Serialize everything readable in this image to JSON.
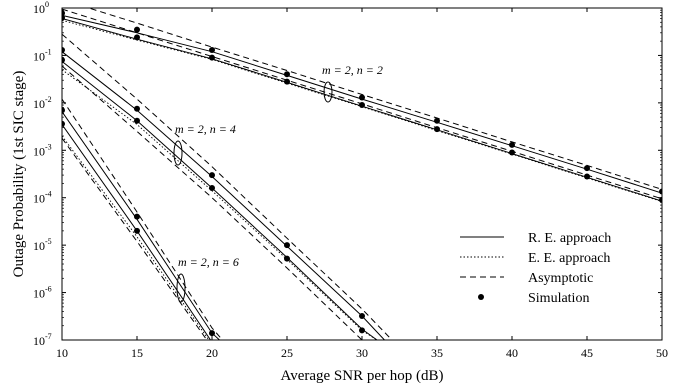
{
  "chart_data": {
    "type": "line",
    "xlabel": "Average SNR per hop (dB)",
    "ylabel": "Outage Probability (1st SIC stage)",
    "xlim": [
      10,
      50
    ],
    "ylim": [
      1e-07,
      1
    ],
    "yscale": "log",
    "grid": false,
    "x_ticks": [
      "10",
      "15",
      "20",
      "25",
      "30",
      "35",
      "40",
      "45",
      "50"
    ],
    "y_ticks": [
      {
        "base": "10",
        "exp": "0"
      },
      {
        "base": "10",
        "exp": "-1"
      },
      {
        "base": "10",
        "exp": "-2"
      },
      {
        "base": "10",
        "exp": "-3"
      },
      {
        "base": "10",
        "exp": "-4"
      },
      {
        "base": "10",
        "exp": "-5"
      },
      {
        "base": "10",
        "exp": "-6"
      },
      {
        "base": "10",
        "exp": "-7"
      }
    ],
    "legend": {
      "placement": "bottom-right",
      "entries": [
        {
          "label": "R. E. approach",
          "style": "solid"
        },
        {
          "label": "E. E. approach",
          "style": "dotted"
        },
        {
          "label": "Asymptotic",
          "style": "dashed"
        },
        {
          "label": "Simulation",
          "style": "marker"
        }
      ]
    },
    "annotations": [
      "m = 2, n = 2",
      "m = 2, n = 4",
      "m = 2, n = 6"
    ],
    "series": [
      {
        "style": "solid",
        "x": [
          10,
          15,
          20,
          25,
          30,
          35,
          40,
          45,
          50
        ],
        "y": [
          0.7,
          0.3,
          0.12,
          0.038,
          0.012,
          0.0039,
          0.00125,
          0.0004,
          0.000125
        ]
      },
      {
        "style": "solid",
        "x": [
          10,
          15,
          20,
          25,
          30,
          35,
          40,
          45,
          50
        ],
        "y": [
          0.6,
          0.22,
          0.085,
          0.027,
          0.0085,
          0.0027,
          0.00085,
          0.00027,
          8.5e-05
        ]
      },
      {
        "style": "dotted",
        "x": [
          10,
          15,
          20,
          25,
          30,
          35,
          40,
          45,
          50
        ],
        "y": [
          0.55,
          0.21,
          0.082,
          0.026,
          0.0083,
          0.0026,
          0.00083,
          0.00026,
          8.3e-05
        ]
      },
      {
        "style": "dashed",
        "x": [
          10,
          15,
          20,
          25,
          30,
          35,
          40,
          45,
          50
        ],
        "y": [
          1.5,
          0.48,
          0.15,
          0.048,
          0.015,
          0.0048,
          0.0015,
          0.00048,
          0.00015
        ]
      },
      {
        "style": "dashed",
        "x": [
          10,
          15,
          20,
          25,
          30,
          35,
          40,
          45,
          50
        ],
        "y": [
          0.95,
          0.3,
          0.095,
          0.03,
          0.0095,
          0.003,
          0.00095,
          0.0003,
          9.5e-05
        ]
      },
      {
        "style": "marker",
        "x": [
          10,
          15,
          20,
          25,
          30,
          35,
          40,
          45,
          50
        ],
        "y": [
          0.78,
          0.35,
          0.13,
          0.04,
          0.013,
          0.0042,
          0.0013,
          0.00042,
          0.000135
        ]
      },
      {
        "style": "marker",
        "x": [
          10,
          15,
          20,
          25,
          30,
          35,
          40,
          45,
          50
        ],
        "y": [
          0.62,
          0.24,
          0.09,
          0.028,
          0.009,
          0.0028,
          0.0009,
          0.00028,
          9e-05
        ]
      },
      {
        "style": "solid",
        "x": [
          10,
          15,
          20,
          25,
          30,
          31.5
        ],
        "y": [
          0.12,
          0.007,
          0.00028,
          9.5e-06,
          3.2e-07,
          1e-07
        ]
      },
      {
        "style": "solid",
        "x": [
          10,
          15,
          20,
          25,
          30,
          31
        ],
        "y": [
          0.075,
          0.0042,
          0.00016,
          5.5e-06,
          1.7e-07,
          1e-07
        ]
      },
      {
        "style": "dotted",
        "x": [
          10,
          15,
          20,
          25,
          30,
          31
        ],
        "y": [
          0.05,
          0.0035,
          0.00014,
          5e-06,
          1.6e-07,
          1e-07
        ]
      },
      {
        "style": "dashed",
        "x": [
          10,
          15,
          20,
          25,
          30,
          32
        ],
        "y": [
          0.28,
          0.012,
          0.00045,
          1.4e-05,
          4.5e-07,
          1e-07
        ]
      },
      {
        "style": "dashed",
        "x": [
          10,
          15,
          20,
          25,
          30,
          30.8
        ],
        "y": [
          0.06,
          0.0025,
          0.0001,
          3.3e-06,
          1e-07,
          6e-08
        ]
      },
      {
        "style": "marker",
        "x": [
          10,
          15,
          20,
          25,
          30
        ],
        "y": [
          0.13,
          0.0075,
          0.0003,
          1e-05,
          3.2e-07
        ]
      },
      {
        "style": "marker",
        "x": [
          10,
          15,
          20,
          25,
          30
        ],
        "y": [
          0.08,
          0.0042,
          0.00016,
          5.2e-06,
          1.6e-07
        ]
      },
      {
        "style": "solid",
        "x": [
          10,
          15,
          20,
          20.5
        ],
        "y": [
          0.0065,
          3.5e-05,
          1.4e-07,
          1e-07
        ]
      },
      {
        "style": "solid",
        "x": [
          10,
          15,
          20,
          20.2
        ],
        "y": [
          0.0035,
          2e-05,
          9e-08,
          8e-08
        ]
      },
      {
        "style": "dotted",
        "x": [
          10,
          15,
          20
        ],
        "y": [
          0.002,
          1.5e-05,
          8e-08
        ]
      },
      {
        "style": "dashed",
        "x": [
          10,
          15,
          20,
          20.7
        ],
        "y": [
          0.012,
          5e-05,
          1.8e-07,
          1e-07
        ]
      },
      {
        "style": "dashed",
        "x": [
          10,
          15,
          20
        ],
        "y": [
          0.0018,
          1.2e-05,
          7e-08
        ]
      },
      {
        "style": "marker",
        "x": [
          10,
          15,
          20
        ],
        "y": [
          0.007,
          4e-05,
          1.4e-07
        ]
      },
      {
        "style": "marker",
        "x": [
          10,
          15,
          20
        ],
        "y": [
          0.0036,
          2e-05,
          8e-08
        ]
      }
    ]
  }
}
